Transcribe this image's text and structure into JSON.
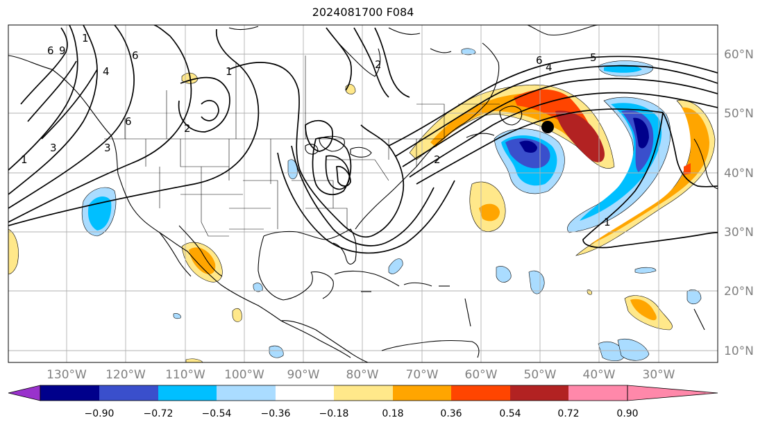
{
  "title": "2024081700 F084",
  "lat_labels": [
    "60°N",
    "50°N",
    "40°N",
    "30°N",
    "20°N",
    "10°N"
  ],
  "lon_labels": [
    "130°W",
    "120°W",
    "110°W",
    "100°W",
    "90°W",
    "80°W",
    "70°W",
    "60°W",
    "50°W",
    "40°W",
    "30°W"
  ],
  "colorbar": {
    "colors": [
      "#9932cc",
      "#00008b",
      "#3a4fcc",
      "#00bfff",
      "#aadcff",
      "#ffffff",
      "#ffe88a",
      "#ffa500",
      "#ff4500",
      "#b22222",
      "#ff88aa"
    ],
    "ticks": [
      "−0.90",
      "−0.72",
      "−0.54",
      "−0.36",
      "−0.18",
      "0.18",
      "0.36",
      "0.54",
      "0.72",
      "0.90"
    ]
  },
  "contour_labels": [
    "6",
    "9",
    "3",
    "6",
    "1",
    "3",
    "4",
    "1",
    "2",
    "6",
    "4",
    "5",
    "6",
    "1",
    "1",
    "2",
    "2"
  ]
}
